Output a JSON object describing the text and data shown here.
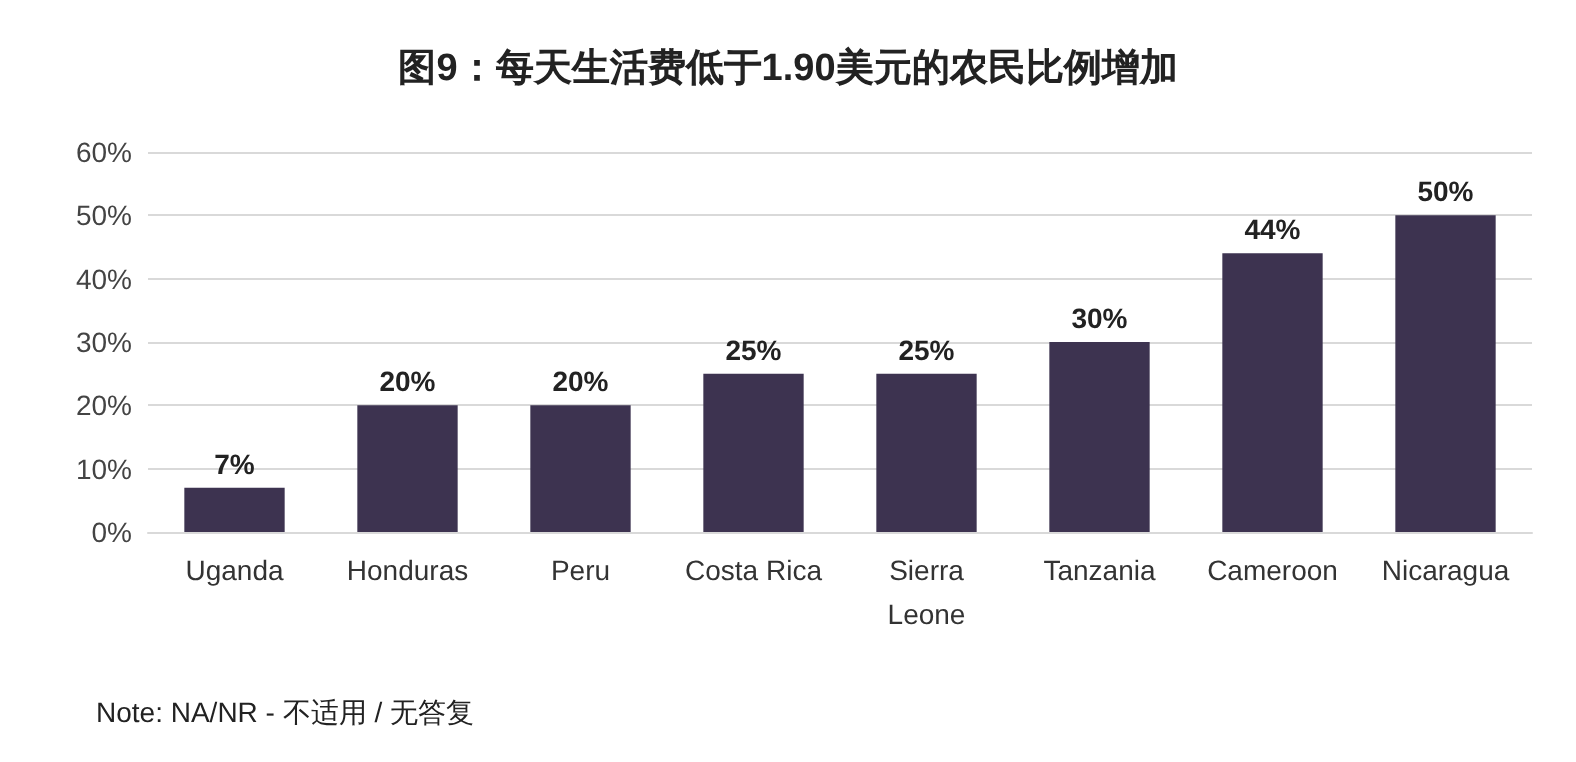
{
  "chart_data": {
    "type": "bar",
    "title": "图9：每天生活费低于1.90美元的农民比例增加",
    "categories": [
      "Uganda",
      "Honduras",
      "Peru",
      "Costa Rica",
      "Sierra\nLeone",
      "Tanzania",
      "Cameroon",
      "Nicaragua"
    ],
    "values": [
      7,
      20,
      20,
      25,
      25,
      30,
      44,
      50
    ],
    "value_labels": [
      "7%",
      "20%",
      "20%",
      "25%",
      "25%",
      "30%",
      "44%",
      "50%"
    ],
    "color": "#3d3350",
    "ylim": [
      0,
      60
    ],
    "yticks": [
      {
        "value": 0,
        "label": "0%"
      },
      {
        "value": 10,
        "label": "10%"
      },
      {
        "value": 20,
        "label": "20%"
      },
      {
        "value": 30,
        "label": "30%"
      },
      {
        "value": 40,
        "label": "40%"
      },
      {
        "value": 50,
        "label": "50%"
      },
      {
        "value": 60,
        "label": "60%"
      }
    ],
    "grid": true,
    "annotations": [
      "Note: NA/NR - 不适用 / 无答复"
    ]
  }
}
